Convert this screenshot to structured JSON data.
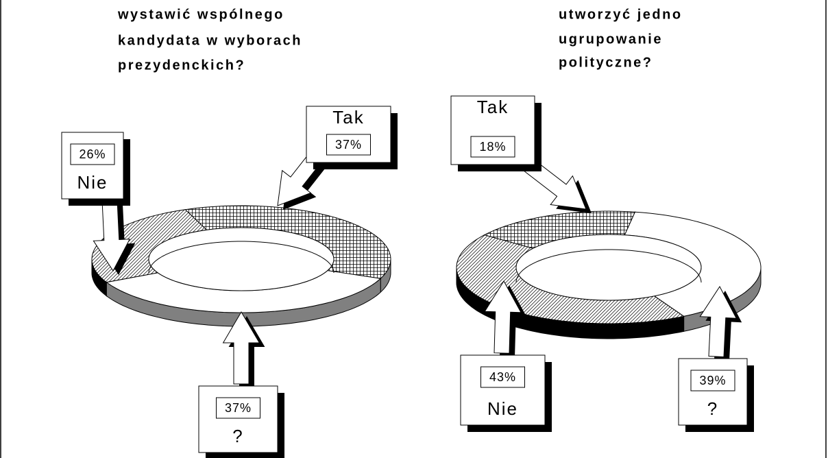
{
  "chart_data": [
    {
      "type": "pie",
      "title": [
        "wystawić wspólnego",
        "kandydata w wyborach",
        "prezydenckich?"
      ],
      "categories": [
        "Tak",
        "Nie",
        "?"
      ],
      "values": [
        37,
        26,
        37
      ],
      "value_labels": [
        "37%",
        "26%",
        "37%"
      ],
      "patterns": [
        "crosshatch",
        "hatch",
        "white"
      ],
      "side_colors": [
        "#808080",
        "#000000",
        "#808080"
      ]
    },
    {
      "type": "pie",
      "title": [
        "utworzyć jedno",
        "ugrupowanie",
        "polityczne?"
      ],
      "categories": [
        "Tak",
        "Nie",
        "?"
      ],
      "values": [
        18,
        43,
        39
      ],
      "value_labels": [
        "18%",
        "43%",
        "39%"
      ],
      "patterns": [
        "crosshatch",
        "hatch",
        "white"
      ],
      "side_colors": [
        "#808080",
        "#000000",
        "#808080"
      ]
    }
  ]
}
